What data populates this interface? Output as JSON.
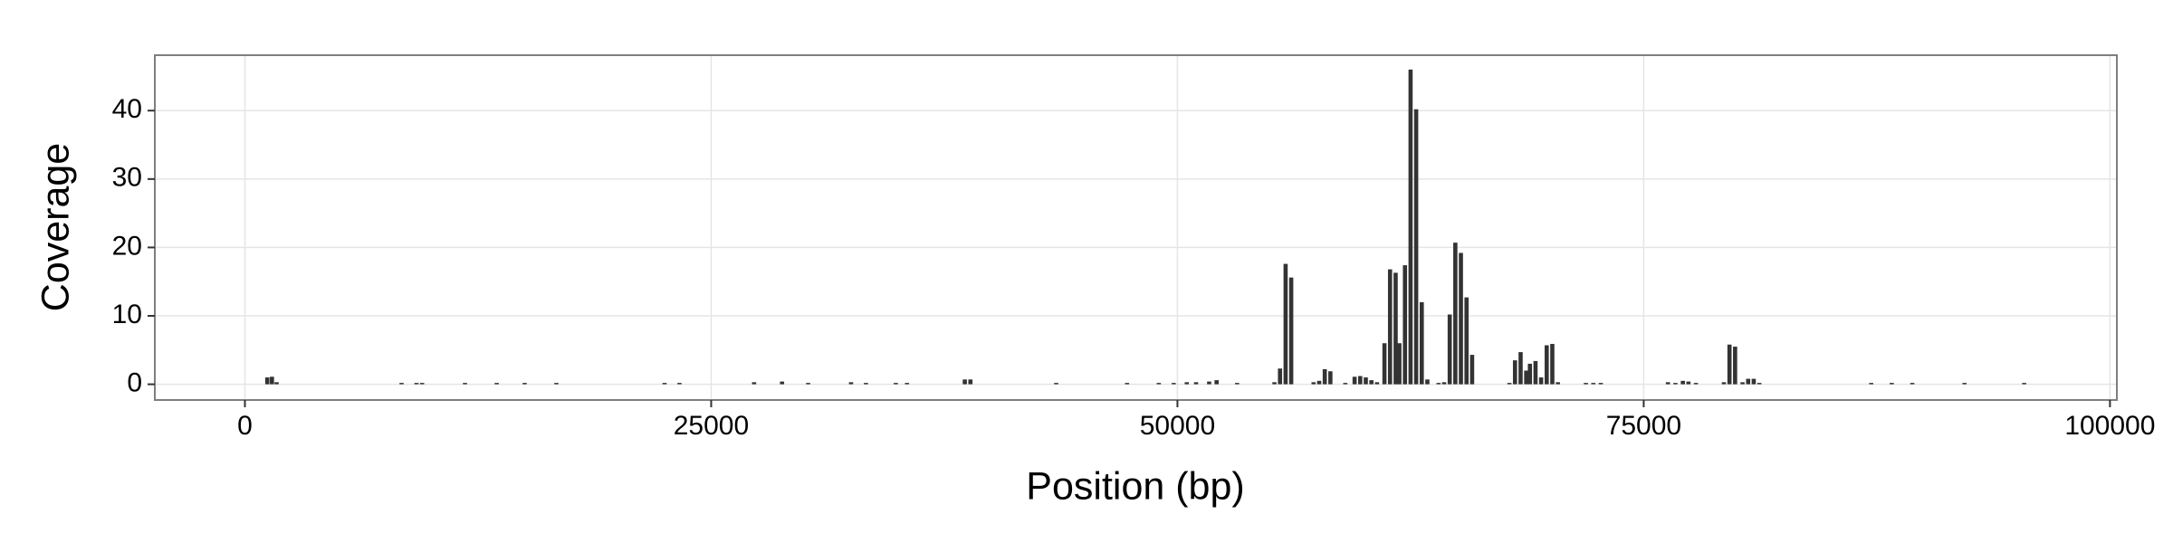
{
  "chart_data": {
    "type": "bar",
    "xlabel": "Position (bp)",
    "ylabel": "Coverage",
    "x": [
      1200,
      1450,
      1700,
      8400,
      9200,
      9500,
      11800,
      13500,
      15000,
      16700,
      22500,
      23300,
      27300,
      28800,
      30200,
      32500,
      33300,
      34900,
      35500,
      38600,
      38900,
      43500,
      47300,
      49000,
      49800,
      50500,
      51000,
      51700,
      52100,
      53200,
      55200,
      55500,
      55800,
      56100,
      57300,
      57600,
      57900,
      58200,
      59000,
      59500,
      59800,
      60100,
      60400,
      60700,
      61100,
      61400,
      61700,
      61900,
      62200,
      62500,
      62800,
      63100,
      63400,
      64000,
      64300,
      64600,
      64900,
      65200,
      65500,
      65800,
      67800,
      68100,
      68400,
      68700,
      68900,
      69200,
      69500,
      69800,
      70100,
      70400,
      71900,
      72300,
      72700,
      76300,
      76700,
      77100,
      77400,
      77800,
      79300,
      79600,
      79900,
      80300,
      80600,
      80900,
      81200,
      87200,
      88300,
      89400,
      92200,
      95400
    ],
    "values": [
      1.0,
      1.1,
      0.3,
      0.2,
      0.2,
      0.2,
      0.2,
      0.2,
      0.2,
      0.2,
      0.2,
      0.2,
      0.3,
      0.4,
      0.2,
      0.3,
      0.2,
      0.2,
      0.2,
      0.7,
      0.7,
      0.2,
      0.2,
      0.2,
      0.2,
      0.3,
      0.3,
      0.4,
      0.6,
      0.2,
      0.3,
      2.3,
      17.6,
      15.6,
      0.3,
      0.5,
      2.2,
      1.9,
      0.2,
      1.1,
      1.2,
      1.0,
      0.6,
      0.3,
      6.0,
      16.8,
      16.3,
      6.0,
      17.4,
      46.0,
      40.2,
      12.0,
      0.7,
      0.2,
      0.3,
      10.2,
      20.7,
      19.2,
      12.7,
      4.3,
      0.2,
      3.5,
      4.7,
      2.0,
      3.0,
      3.4,
      1.0,
      5.7,
      5.9,
      0.3,
      0.2,
      0.2,
      0.2,
      0.3,
      0.2,
      0.5,
      0.4,
      0.2,
      0.3,
      5.8,
      5.5,
      0.3,
      0.8,
      0.8,
      0.2,
      0.2,
      0.2,
      0.2,
      0.2,
      0.2
    ],
    "color": "#333333",
    "xlim": [
      -4830,
      100370
    ],
    "xticks": [
      0,
      25000,
      50000,
      75000,
      100000
    ],
    "ylim": [
      -2.3,
      48.1
    ],
    "yticks": [
      0,
      10,
      20,
      30,
      40
    ],
    "grid": true
  }
}
